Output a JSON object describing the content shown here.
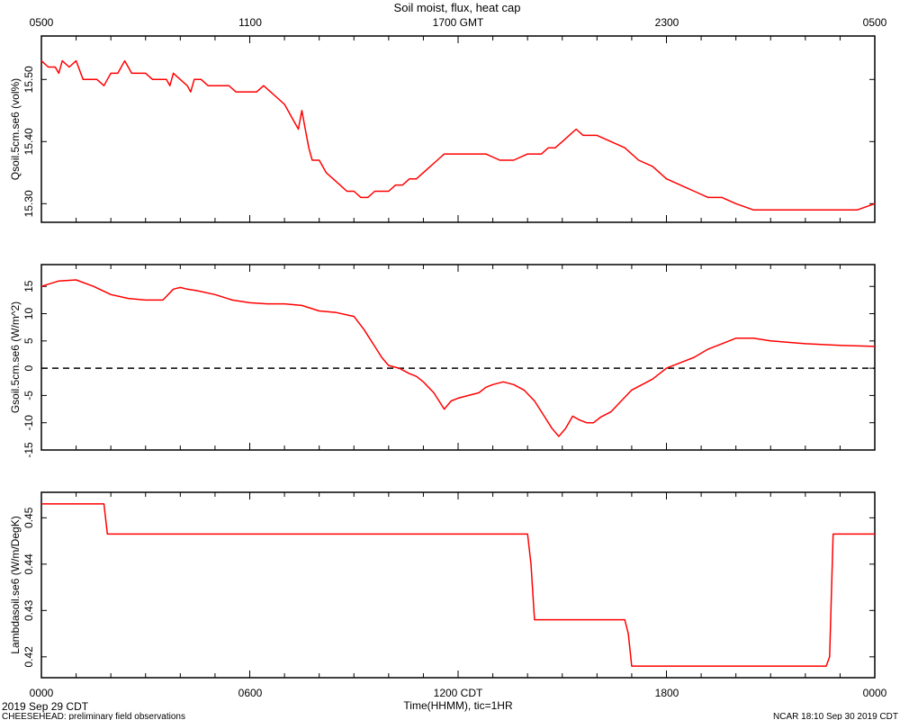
{
  "title": "Soil moist, flux, heat cap",
  "top_axis_ticks": [
    "0500",
    "1100",
    "1700 GMT",
    "2300",
    "0500"
  ],
  "bottom_axis_ticks": [
    "0000",
    "0600",
    "1200 CDT",
    "1800",
    "0000"
  ],
  "x_axis_label": "Time(HHMM), tic=1HR",
  "footer": {
    "date": "2019 Sep 29 CDT",
    "project": "CHEESEHEAD: preliminary field observations",
    "stamp": "NCAR 18:10 Sep 30 2019 CDT"
  },
  "colors": {
    "series": "#ff0000",
    "axes": "#000000"
  },
  "chart_data": [
    {
      "type": "line",
      "ylabel": "Qsoil.5cm.se6 (vol%)",
      "ylim": [
        15.27,
        15.57
      ],
      "yticks": [
        "15.30",
        "15.40",
        "15.50"
      ],
      "xlim": [
        0,
        24
      ],
      "series": [
        {
          "x": [
            0,
            0.2,
            0.4,
            0.5,
            0.6,
            0.8,
            1.0,
            1.2,
            1.3,
            1.4,
            1.6,
            1.8,
            1.9,
            2.0,
            2.1,
            2.2,
            2.3,
            2.4,
            2.5,
            2.6,
            2.8,
            3.0,
            3.2,
            3.4,
            3.6,
            3.7,
            3.8,
            4.0,
            4.2,
            4.3,
            4.4,
            4.6,
            4.8,
            5.0,
            5.2,
            5.4,
            5.6,
            5.8,
            6.0,
            6.2,
            6.4,
            6.6,
            6.8,
            7.0,
            7.2,
            7.3,
            7.4,
            7.5,
            7.6,
            7.7,
            7.8,
            7.9,
            8.0,
            8.2,
            8.4,
            8.6,
            8.8,
            9.0,
            9.2,
            9.4,
            9.6,
            9.8,
            10.0,
            10.2,
            10.4,
            10.6,
            10.8,
            11.0,
            11.2,
            11.4,
            11.6,
            11.8,
            12.0,
            12.4,
            12.8,
            13.2,
            13.6,
            14.0,
            14.4,
            14.6,
            14.8,
            15.0,
            15.2,
            15.4,
            15.6,
            15.8,
            16.0,
            16.4,
            16.8,
            17.2,
            17.6,
            18.0,
            18.4,
            18.8,
            19.2,
            19.6,
            20.0,
            20.5,
            21.0,
            21.5,
            22.0,
            22.5,
            23.0,
            23.5,
            24.0
          ],
          "y": [
            15.53,
            15.52,
            15.52,
            15.51,
            15.53,
            15.52,
            15.53,
            15.5,
            15.5,
            15.5,
            15.5,
            15.49,
            15.5,
            15.51,
            15.51,
            15.51,
            15.52,
            15.53,
            15.52,
            15.51,
            15.51,
            15.51,
            15.5,
            15.5,
            15.5,
            15.49,
            15.51,
            15.5,
            15.49,
            15.48,
            15.5,
            15.5,
            15.49,
            15.49,
            15.49,
            15.49,
            15.48,
            15.48,
            15.48,
            15.48,
            15.49,
            15.48,
            15.47,
            15.46,
            15.44,
            15.43,
            15.42,
            15.45,
            15.42,
            15.39,
            15.37,
            15.37,
            15.37,
            15.35,
            15.34,
            15.33,
            15.32,
            15.32,
            15.31,
            15.31,
            15.32,
            15.32,
            15.32,
            15.33,
            15.33,
            15.34,
            15.34,
            15.35,
            15.36,
            15.37,
            15.38,
            15.38,
            15.38,
            15.38,
            15.38,
            15.37,
            15.37,
            15.38,
            15.38,
            15.39,
            15.39,
            15.4,
            15.41,
            15.42,
            15.41,
            15.41,
            15.41,
            15.4,
            15.39,
            15.37,
            15.36,
            15.34,
            15.33,
            15.32,
            15.31,
            15.31,
            15.3,
            15.29,
            15.29,
            15.29,
            15.29,
            15.29,
            15.29,
            15.29,
            15.3
          ]
        }
      ]
    },
    {
      "type": "line",
      "ylabel": "Gsoil.5cm.se6 (W/m^2)",
      "ylim": [
        -15,
        19
      ],
      "yticks": [
        "-15",
        "-10",
        "-5",
        "0",
        "5",
        "10",
        "15"
      ],
      "xlim": [
        0,
        24
      ],
      "reference_line": 0,
      "series": [
        {
          "x": [
            0,
            0.5,
            1.0,
            1.5,
            2.0,
            2.5,
            3.0,
            3.5,
            3.8,
            4.0,
            4.2,
            4.5,
            5.0,
            5.5,
            6.0,
            6.5,
            7.0,
            7.5,
            8.0,
            8.5,
            9.0,
            9.3,
            9.6,
            9.8,
            10.0,
            10.3,
            10.6,
            10.8,
            11.0,
            11.3,
            11.6,
            11.8,
            12.0,
            12.3,
            12.6,
            12.8,
            13.0,
            13.3,
            13.6,
            13.9,
            14.2,
            14.5,
            14.7,
            14.9,
            15.1,
            15.3,
            15.5,
            15.7,
            15.9,
            16.1,
            16.4,
            16.7,
            17.0,
            17.3,
            17.6,
            17.8,
            18.0,
            18.4,
            18.8,
            19.2,
            19.6,
            20.0,
            20.5,
            21.0,
            22.0,
            23.0,
            24.0
          ],
          "y": [
            15.0,
            16.0,
            16.2,
            15.0,
            13.5,
            12.8,
            12.5,
            12.5,
            14.5,
            14.8,
            14.5,
            14.2,
            13.5,
            12.5,
            12.0,
            11.8,
            11.8,
            11.5,
            10.5,
            10.2,
            9.5,
            7.0,
            4.0,
            2.0,
            0.5,
            0.0,
            -1.0,
            -1.5,
            -2.5,
            -4.5,
            -7.5,
            -6.0,
            -5.5,
            -5.0,
            -4.5,
            -3.5,
            -3.0,
            -2.5,
            -3.0,
            -4.0,
            -6.0,
            -9.0,
            -11.0,
            -12.5,
            -11.0,
            -8.8,
            -9.5,
            -10.0,
            -10.0,
            -9.0,
            -8.0,
            -6.0,
            -4.0,
            -3.0,
            -2.0,
            -1.0,
            0.0,
            1.0,
            2.0,
            3.5,
            4.5,
            5.5,
            5.5,
            5.0,
            4.5,
            4.2,
            4.0
          ]
        }
      ]
    },
    {
      "type": "line",
      "ylabel": "Lambdasoil.se6 (W/m/DegK)",
      "ylim": [
        0.4155,
        0.4555
      ],
      "yticks": [
        "0.42",
        "0.43",
        "0.44",
        "0.45"
      ],
      "xlim": [
        0,
        24
      ],
      "series": [
        {
          "x": [
            0,
            1.8,
            1.9,
            14.0,
            14.1,
            14.2,
            16.8,
            16.9,
            17.0,
            22.6,
            22.7,
            22.8,
            24.0
          ],
          "y": [
            0.453,
            0.453,
            0.4465,
            0.4465,
            0.44,
            0.428,
            0.428,
            0.425,
            0.418,
            0.418,
            0.42,
            0.4465,
            0.4465
          ]
        }
      ]
    }
  ]
}
